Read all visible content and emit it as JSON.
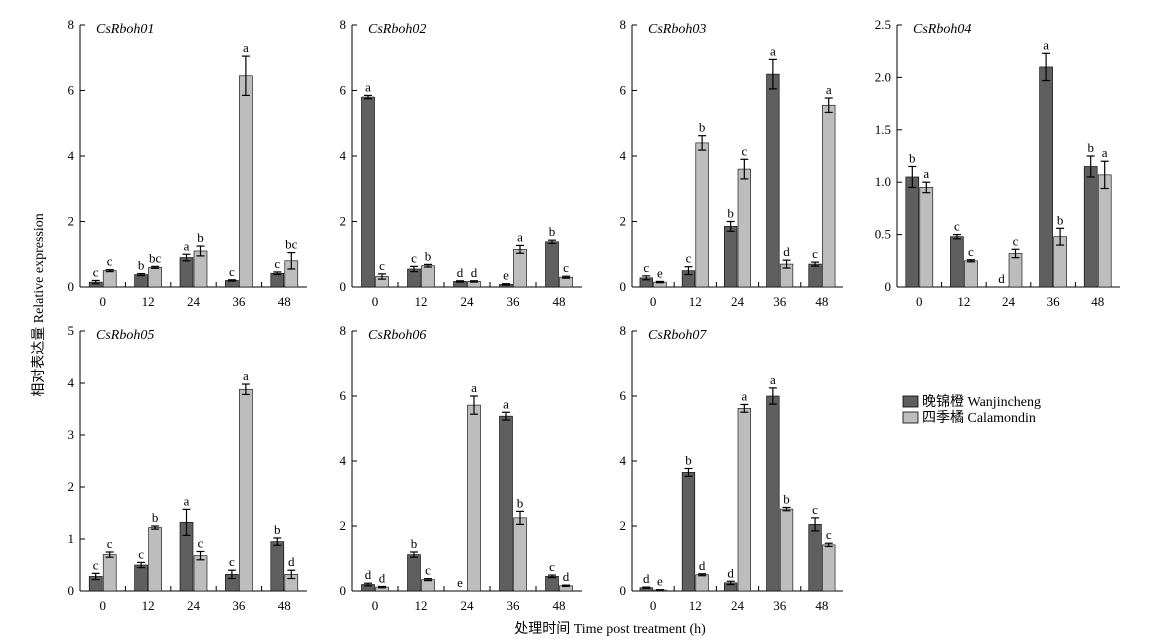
{
  "figure": {
    "ylabel": "相对表达量 Relative expression",
    "xlabel": "处理时间 Time post treatment (h)",
    "legend": {
      "placement": "right",
      "items": [
        {
          "name": "晚锦橙 Wanjincheng",
          "color": "#5f5f5f"
        },
        {
          "name": "四季橘 Calamondin",
          "color": "#bdbdbd"
        }
      ]
    }
  },
  "chart_data": [
    {
      "type": "bar",
      "title": "CsRboh01",
      "categories": [
        "0",
        "12",
        "24",
        "36",
        "48"
      ],
      "ylim": [
        0,
        8
      ],
      "yticks": [
        "0",
        "2",
        "4",
        "6",
        "8"
      ],
      "series": [
        {
          "name": "晚锦橙 Wanjincheng",
          "values": [
            0.15,
            0.38,
            0.9,
            0.2,
            0.42
          ],
          "errors": [
            0.05,
            0.03,
            0.1,
            0.02,
            0.04
          ],
          "labels": [
            "c",
            "b",
            "a",
            "c",
            "c"
          ]
        },
        {
          "name": "四季橘 Calamondin",
          "values": [
            0.5,
            0.6,
            1.1,
            6.45,
            0.8
          ],
          "errors": [
            0.03,
            0.03,
            0.15,
            0.6,
            0.25
          ],
          "labels": [
            "c",
            "bc",
            "b",
            "a",
            "bc"
          ]
        }
      ]
    },
    {
      "type": "bar",
      "title": "CsRboh02",
      "categories": [
        "0",
        "12",
        "24",
        "36",
        "48"
      ],
      "ylim": [
        0,
        8
      ],
      "yticks": [
        "0",
        "2",
        "4",
        "6",
        "8"
      ],
      "series": [
        {
          "name": "晚锦橙 Wanjincheng",
          "values": [
            5.8,
            0.55,
            0.17,
            0.08,
            1.38
          ],
          "errors": [
            0.05,
            0.08,
            0.02,
            0.02,
            0.05
          ],
          "labels": [
            "a",
            "c",
            "d",
            "e",
            "b"
          ]
        },
        {
          "name": "四季橘 Calamondin",
          "values": [
            0.32,
            0.65,
            0.17,
            1.15,
            0.3
          ],
          "errors": [
            0.08,
            0.04,
            0.02,
            0.12,
            0.03
          ],
          "labels": [
            "c",
            "b",
            "d",
            "a",
            "c"
          ]
        }
      ]
    },
    {
      "type": "bar",
      "title": "CsRboh03",
      "categories": [
        "0",
        "12",
        "24",
        "36",
        "48"
      ],
      "ylim": [
        0,
        8
      ],
      "yticks": [
        "0",
        "2",
        "4",
        "6",
        "8"
      ],
      "series": [
        {
          "name": "晚锦橙 Wanjincheng",
          "values": [
            0.28,
            0.5,
            1.85,
            6.5,
            0.7
          ],
          "errors": [
            0.06,
            0.12,
            0.15,
            0.45,
            0.06
          ],
          "labels": [
            "c",
            "c",
            "b",
            "a",
            "c"
          ]
        },
        {
          "name": "四季橘 Calamondin",
          "values": [
            0.15,
            4.4,
            3.6,
            0.7,
            5.55
          ],
          "errors": [
            0.02,
            0.22,
            0.3,
            0.12,
            0.22
          ],
          "labels": [
            "e",
            "b",
            "c",
            "d",
            "a"
          ]
        }
      ]
    },
    {
      "type": "bar",
      "title": "CsRboh04",
      "categories": [
        "0",
        "12",
        "24",
        "36",
        "48"
      ],
      "ylim": [
        0,
        2.5
      ],
      "yticks": [
        "0",
        "0.5",
        "1.0",
        "1.5",
        "2.0",
        "2.5"
      ],
      "series": [
        {
          "name": "晚锦橙 Wanjincheng",
          "values": [
            1.05,
            0.48,
            0.0,
            2.1,
            1.15
          ],
          "errors": [
            0.1,
            0.02,
            0.0,
            0.13,
            0.1
          ],
          "labels": [
            "b",
            "c",
            "d",
            "a",
            "b"
          ]
        },
        {
          "name": "四季橘 Calamondin",
          "values": [
            0.95,
            0.25,
            0.32,
            0.48,
            1.07
          ],
          "errors": [
            0.05,
            0.01,
            0.04,
            0.08,
            0.13
          ],
          "labels": [
            "a",
            "c",
            "c",
            "b",
            "a"
          ]
        }
      ]
    },
    {
      "type": "bar",
      "title": "CsRboh05",
      "categories": [
        "0",
        "12",
        "24",
        "36",
        "48"
      ],
      "ylim": [
        0,
        5
      ],
      "yticks": [
        "0",
        "1",
        "2",
        "3",
        "4",
        "5"
      ],
      "series": [
        {
          "name": "晚锦橙 Wanjincheng",
          "values": [
            0.28,
            0.5,
            1.32,
            0.32,
            0.95
          ],
          "errors": [
            0.06,
            0.05,
            0.25,
            0.08,
            0.07
          ],
          "labels": [
            "c",
            "c",
            "a",
            "c",
            "b"
          ]
        },
        {
          "name": "四季橘 Calamondin",
          "values": [
            0.7,
            1.22,
            0.68,
            3.88,
            0.32
          ],
          "errors": [
            0.05,
            0.03,
            0.08,
            0.1,
            0.08
          ],
          "labels": [
            "c",
            "b",
            "c",
            "a",
            "d"
          ]
        }
      ]
    },
    {
      "type": "bar",
      "title": "CsRboh06",
      "categories": [
        "0",
        "12",
        "24",
        "36",
        "48"
      ],
      "ylim": [
        0,
        8
      ],
      "yticks": [
        "0",
        "2",
        "4",
        "6",
        "8"
      ],
      "series": [
        {
          "name": "晚锦橙 Wanjincheng",
          "values": [
            0.2,
            1.12,
            0.0,
            5.38,
            0.45
          ],
          "errors": [
            0.04,
            0.08,
            0.0,
            0.12,
            0.04
          ],
          "labels": [
            "d",
            "b",
            "e",
            "a",
            "c"
          ]
        },
        {
          "name": "四季橘 Calamondin",
          "values": [
            0.12,
            0.35,
            5.72,
            2.25,
            0.16
          ],
          "errors": [
            0.02,
            0.03,
            0.28,
            0.2,
            0.02
          ],
          "labels": [
            "d",
            "c",
            "a",
            "b",
            "d"
          ]
        }
      ]
    },
    {
      "type": "bar",
      "title": "CsRboh07",
      "categories": [
        "0",
        "12",
        "24",
        "36",
        "48"
      ],
      "ylim": [
        0,
        8
      ],
      "yticks": [
        "0",
        "2",
        "4",
        "6",
        "8"
      ],
      "series": [
        {
          "name": "晚锦橙 Wanjincheng",
          "values": [
            0.1,
            3.65,
            0.25,
            6.0,
            2.05
          ],
          "errors": [
            0.02,
            0.12,
            0.05,
            0.25,
            0.2
          ],
          "labels": [
            "d",
            "b",
            "d",
            "a",
            "c"
          ]
        },
        {
          "name": "四季橘 Calamondin",
          "values": [
            0.03,
            0.5,
            5.62,
            2.52,
            1.42
          ],
          "errors": [
            0.01,
            0.03,
            0.12,
            0.05,
            0.05
          ],
          "labels": [
            "e",
            "d",
            "a",
            "b",
            "c"
          ]
        }
      ]
    }
  ]
}
